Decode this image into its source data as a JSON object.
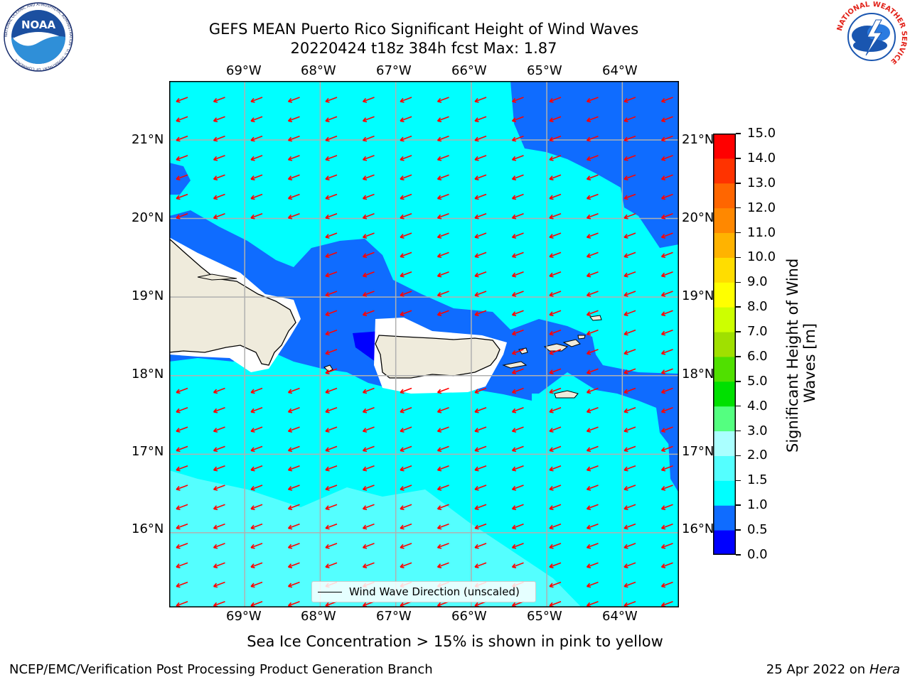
{
  "header": {
    "title_line1": "GEFS MEAN Puerto Rico Significant Height of Wind Waves",
    "title_line2": "20220424 t18z 384h fcst   Max: 1.87"
  },
  "logos": {
    "noaa_text": "NOAA",
    "noaa_ring_text": "NATIONAL OCEANIC AND ATMOSPHERIC ADMINISTRATION · U.S. DEPARTMENT OF COMMERCE",
    "nws_ring_text": "NATIONAL WEATHER SERVICE"
  },
  "map": {
    "lon_labels": [
      "69°W",
      "68°W",
      "67°W",
      "66°W",
      "65°W",
      "64°W"
    ],
    "lat_labels": [
      "21°N",
      "20°N",
      "19°N",
      "18°N",
      "17°N",
      "16°N"
    ],
    "lon_range": [
      -70.0,
      -63.25
    ],
    "lat_range": [
      15.05,
      21.75
    ],
    "wave_direction_from": "east-northeast",
    "arrow_color": "#ff0000",
    "land_color": "#efebdc",
    "legend_label": "Wind Wave Direction (unscaled)"
  },
  "colorbar": {
    "title": "Significant Height of Wind Waves [m]",
    "ticks": [
      "0.0",
      "0.5",
      "1.0",
      "1.5",
      "2.0",
      "3.0",
      "4.0",
      "5.0",
      "6.0",
      "7.0",
      "8.0",
      "9.0",
      "10.0",
      "11.0",
      "12.0",
      "13.0",
      "14.0",
      "15.0"
    ],
    "colors": [
      "#0000ff",
      "#0f6cff",
      "#00ffff",
      "#54ffff",
      "#aaffff",
      "#54ff80",
      "#00e000",
      "#50e000",
      "#a0e000",
      "#cdff00",
      "#ffff00",
      "#ffdd00",
      "#ffb300",
      "#ff8800",
      "#ff6600",
      "#ff3300",
      "#ff0000"
    ]
  },
  "subtitle": "Sea Ice Concentration > 15% is shown in pink to yellow",
  "footer": {
    "left": "NCEP/EMC/Verification Post Processing Product Generation Branch",
    "date": "25 Apr 2022 on ",
    "machine": "Hera"
  }
}
